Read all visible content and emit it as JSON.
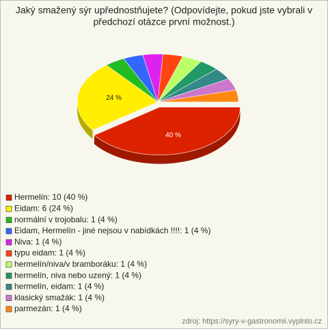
{
  "chart_data": {
    "type": "pie",
    "title": [
      "Jaký smažený sýr upřednostňujete? (Odpovídejte, pokud jste vybrali v",
      "předchozí otázce první možnost.)"
    ],
    "categories": [
      "Hermelín: 10 (40 %)",
      "Eidam: 6 (24 %)",
      "normální v trojobalu: 1 (4 %)",
      "Eidam, Hermelín - jiné nejsou v nabídkách !!!!: 1 (4 %)",
      "Niva: 1 (4 %)",
      "typu eidam: 1 (4 %)",
      "hermelín/niva/v bramboráku: 1 (4 %)",
      "hermelín, niva nebo uzený: 1 (4 %)",
      "hermelín, eidam: 1 (4 %)",
      "klasický smažák: 1 (4 %)",
      "parmezán: 1 (4 %)"
    ],
    "values": [
      10,
      6,
      1,
      1,
      1,
      1,
      1,
      1,
      1,
      1,
      1
    ],
    "value_labels": [
      "40 %",
      "24 %",
      null,
      null,
      null,
      null,
      null,
      null,
      null,
      null,
      null
    ],
    "colors": [
      "#dd2200",
      "#ffee00",
      "#22bb22",
      "#3366ff",
      "#dd22ee",
      "#ff4411",
      "#bbff66",
      "#229966",
      "#338888",
      "#cc77cc",
      "#ff8811"
    ],
    "source": "zdroj: https://syry-v-gastronomii.vyplnto.cz"
  }
}
